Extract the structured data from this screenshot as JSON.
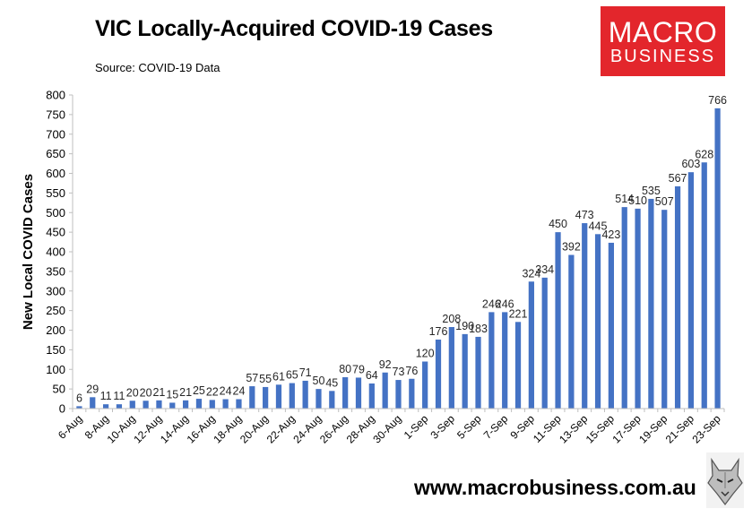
{
  "header": {
    "title": "VIC Locally-Acquired COVID-19 Cases",
    "source": "Source: COVID-19 Data"
  },
  "logo": {
    "line1": "MACRO",
    "line2": "BUSINESS",
    "color": "#e3262c"
  },
  "footer": {
    "url": "www.macrobusiness.com.au"
  },
  "colors": {
    "bar": "#4472c4"
  },
  "chart_data": {
    "type": "bar",
    "title": "VIC Locally-Acquired COVID-19 Cases",
    "xlabel": "",
    "ylabel": "New Local COVID Cases",
    "ylim": [
      0,
      800
    ],
    "yticks": [
      0,
      50,
      100,
      150,
      200,
      250,
      300,
      350,
      400,
      450,
      500,
      550,
      600,
      650,
      700,
      750,
      800
    ],
    "grid": false,
    "categories": [
      "6-Aug",
      "7-Aug",
      "8-Aug",
      "9-Aug",
      "10-Aug",
      "11-Aug",
      "12-Aug",
      "13-Aug",
      "14-Aug",
      "15-Aug",
      "16-Aug",
      "17-Aug",
      "18-Aug",
      "19-Aug",
      "20-Aug",
      "21-Aug",
      "22-Aug",
      "23-Aug",
      "24-Aug",
      "25-Aug",
      "26-Aug",
      "27-Aug",
      "28-Aug",
      "29-Aug",
      "30-Aug",
      "31-Aug",
      "1-Sep",
      "2-Sep",
      "3-Sep",
      "4-Sep",
      "5-Sep",
      "6-Sep",
      "7-Sep",
      "8-Sep",
      "9-Sep",
      "10-Sep",
      "11-Sep",
      "12-Sep",
      "13-Sep",
      "14-Sep",
      "15-Sep",
      "16-Sep",
      "17-Sep",
      "18-Sep",
      "19-Sep",
      "20-Sep",
      "21-Sep",
      "22-Sep",
      "23-Sep"
    ],
    "tick_labels": [
      "6-Aug",
      "8-Aug",
      "10-Aug",
      "12-Aug",
      "14-Aug",
      "16-Aug",
      "18-Aug",
      "20-Aug",
      "22-Aug",
      "24-Aug",
      "26-Aug",
      "28-Aug",
      "30-Aug",
      "1-Sep",
      "3-Sep",
      "5-Sep",
      "7-Sep",
      "9-Sep",
      "11-Sep",
      "13-Sep",
      "15-Sep",
      "17-Sep",
      "19-Sep",
      "21-Sep",
      "23-Sep"
    ],
    "values": [
      6,
      29,
      11,
      11,
      20,
      20,
      21,
      15,
      21,
      25,
      22,
      24,
      24,
      57,
      55,
      61,
      65,
      71,
      50,
      45,
      80,
      79,
      64,
      92,
      73,
      76,
      120,
      176,
      208,
      190,
      183,
      246,
      246,
      221,
      324,
      334,
      450,
      392,
      473,
      445,
      423,
      514,
      510,
      535,
      507,
      567,
      603,
      628,
      766
    ]
  }
}
